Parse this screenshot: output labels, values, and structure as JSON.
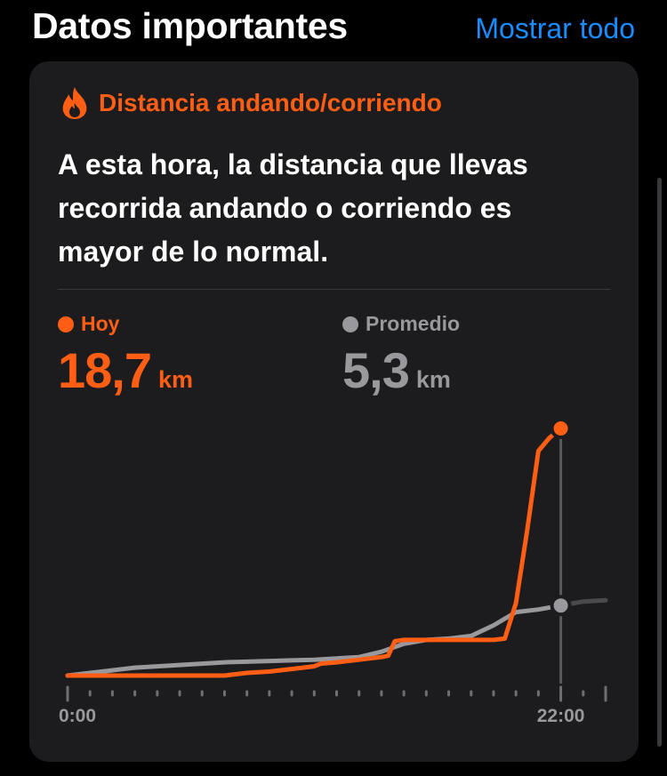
{
  "header": {
    "title": "Datos importantes",
    "show_all_label": "Mostrar todo"
  },
  "card": {
    "icon": "flame-icon",
    "category": "Distancia andando/corriendo",
    "message": "A esta hora, la distancia que llevas recorrida andando o corriendo es mayor de lo normal.",
    "today": {
      "label": "Hoy",
      "value": "18,7",
      "unit": "km"
    },
    "average": {
      "label": "Promedio",
      "value": "5,3",
      "unit": "km"
    }
  },
  "colors": {
    "accent": "#ff5e14",
    "average": "#98989d",
    "link": "#1a8cff",
    "card_bg": "#1c1c1e"
  },
  "chart_data": {
    "type": "line",
    "x_tick_labels": [
      "0:00",
      "22:00"
    ],
    "xlim": [
      0,
      24
    ],
    "ylim": [
      0,
      18.7
    ],
    "current_hour": 22,
    "series": [
      {
        "name": "Hoy",
        "color": "#ff5e14",
        "x": [
          0,
          1,
          2,
          3,
          4,
          5,
          6,
          7,
          7.5,
          8,
          9,
          10,
          11,
          11.3,
          12,
          13,
          14,
          14.3,
          14.6,
          15,
          16,
          17,
          18,
          19,
          19.5,
          20,
          20.5,
          21,
          21.5,
          22
        ],
        "y": [
          0,
          0,
          0,
          0,
          0,
          0,
          0,
          0,
          0.1,
          0.2,
          0.3,
          0.5,
          0.7,
          0.9,
          1.0,
          1.2,
          1.4,
          1.5,
          2.6,
          2.7,
          2.7,
          2.7,
          2.7,
          2.7,
          2.8,
          5.5,
          11.0,
          17.0,
          18.0,
          18.7
        ]
      },
      {
        "name": "Promedio",
        "color": "#98989d",
        "x": [
          0,
          1,
          2,
          3,
          4,
          5,
          6,
          7,
          8,
          9,
          10,
          11,
          12,
          13,
          14,
          15,
          16,
          17,
          18,
          19,
          20,
          21,
          22
        ],
        "y": [
          0,
          0.2,
          0.4,
          0.6,
          0.7,
          0.8,
          0.9,
          1.0,
          1.05,
          1.1,
          1.15,
          1.2,
          1.3,
          1.4,
          1.8,
          2.4,
          2.7,
          2.8,
          3.0,
          3.8,
          4.8,
          5.0,
          5.3
        ]
      },
      {
        "name": "Promedio (resto del día)",
        "color": "#4a4a4c",
        "x": [
          22,
          23,
          24
        ],
        "y": [
          5.3,
          5.6,
          5.7
        ]
      }
    ]
  }
}
